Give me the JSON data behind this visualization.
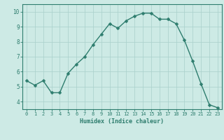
{
  "x": [
    0,
    1,
    2,
    3,
    4,
    5,
    6,
    7,
    8,
    9,
    10,
    11,
    12,
    13,
    14,
    15,
    16,
    17,
    18,
    19,
    20,
    21,
    22,
    23
  ],
  "y": [
    5.4,
    5.1,
    5.4,
    4.6,
    4.6,
    5.9,
    6.5,
    7.0,
    7.8,
    8.5,
    9.2,
    8.9,
    9.4,
    9.7,
    9.9,
    9.9,
    9.5,
    9.5,
    9.2,
    8.1,
    6.7,
    5.2,
    3.8,
    3.6
  ],
  "line_color": "#2e7d6e",
  "bg_color": "#cdeae5",
  "grid_color": "#a8d0cb",
  "xlabel": "Humidex (Indice chaleur)",
  "xlim": [
    -0.5,
    23.5
  ],
  "ylim": [
    3.5,
    10.5
  ],
  "yticks": [
    4,
    5,
    6,
    7,
    8,
    9,
    10
  ],
  "xticks": [
    0,
    1,
    2,
    3,
    4,
    5,
    6,
    7,
    8,
    9,
    10,
    11,
    12,
    13,
    14,
    15,
    16,
    17,
    18,
    19,
    20,
    21,
    22,
    23
  ],
  "marker_size": 2.5,
  "line_width": 1.0,
  "tick_color": "#2e7d6e",
  "label_color": "#2e7d6e",
  "axis_color": "#2e7d6e",
  "xlabel_fontsize": 6.0,
  "tick_fontsize_x": 5.0,
  "tick_fontsize_y": 5.5
}
